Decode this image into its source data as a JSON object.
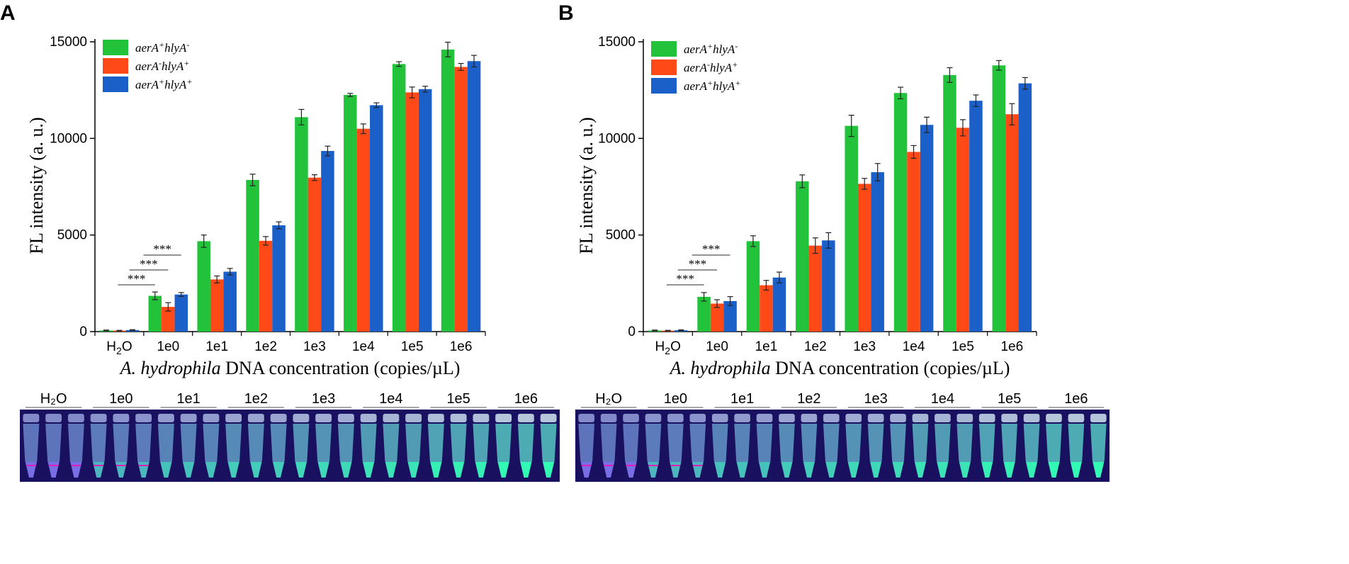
{
  "colors": {
    "green": "#22c33b",
    "orange": "#ff4a18",
    "blue": "#1b5fc8",
    "axis": "#000000",
    "tube_bg": "#1a1060"
  },
  "chart_data": [
    {
      "type": "bar",
      "panel": "A",
      "title": "",
      "xlabel_italic": "A. hydrophila",
      "xlabel_rest": " DNA concentration (copies/µL)",
      "ylabel": "FL intensity (a. u.)",
      "ylim": [
        0,
        15000
      ],
      "yticks": [
        0,
        5000,
        10000,
        15000
      ],
      "categories": [
        "H2O",
        "1e0",
        "1e1",
        "1e2",
        "1e3",
        "1e4",
        "1e5",
        "1e6"
      ],
      "series": [
        {
          "name": "aerA+hlyA-",
          "base": "aerA",
          "sup1": "+",
          "mid": "hlyA",
          "sup2": "-",
          "color": "#22c33b",
          "values": [
            60,
            1850,
            4680,
            7850,
            11100,
            12250,
            13850,
            14600
          ],
          "errors": [
            20,
            200,
            320,
            300,
            400,
            80,
            120,
            380
          ]
        },
        {
          "name": "aerA-hlyA+",
          "base": "aerA",
          "sup1": "-",
          "mid": "hlyA",
          "sup2": "+",
          "color": "#ff4a18",
          "values": [
            50,
            1280,
            2700,
            4700,
            7970,
            10500,
            12380,
            13700
          ],
          "errors": [
            15,
            220,
            180,
            220,
            150,
            250,
            280,
            180
          ]
        },
        {
          "name": "aerA+hlyA+",
          "base": "aerA",
          "sup1": "+",
          "mid": "hlyA",
          "sup2": "+",
          "color": "#1b5fc8",
          "values": [
            80,
            1920,
            3100,
            5500,
            9350,
            11720,
            12550,
            14000
          ],
          "errors": [
            20,
            100,
            170,
            180,
            250,
            120,
            150,
            300
          ]
        }
      ],
      "significance": [
        {
          "label": "***",
          "level": 1
        },
        {
          "label": "***",
          "level": 2
        },
        {
          "label": "***",
          "level": 3
        }
      ],
      "tube_labels": [
        "H₂O",
        "1e0",
        "1e1",
        "1e2",
        "1e3",
        "1e4",
        "1e5",
        "1e6"
      ]
    },
    {
      "type": "bar",
      "panel": "B",
      "title": "",
      "xlabel_italic": "A. hydrophila",
      "xlabel_rest": " DNA concentration (copies/µL)",
      "ylabel": "FL intensity (a. u.)",
      "ylim": [
        0,
        15000
      ],
      "yticks": [
        0,
        5000,
        10000,
        15000
      ],
      "categories": [
        "H2O",
        "1e0",
        "1e1",
        "1e2",
        "1e3",
        "1e4",
        "1e5",
        "1e6"
      ],
      "series": [
        {
          "name": "aerA+hlyA-",
          "base": "aerA",
          "sup1": "+",
          "mid": "hlyA",
          "sup2": "-",
          "color": "#22c33b",
          "values": [
            60,
            1800,
            4680,
            7780,
            10650,
            12350,
            13280,
            13780
          ],
          "errors": [
            20,
            220,
            280,
            330,
            550,
            300,
            380,
            250
          ]
        },
        {
          "name": "aerA-hlyA+",
          "base": "aerA",
          "sup1": "-",
          "mid": "hlyA",
          "sup2": "+",
          "color": "#ff4a18",
          "values": [
            50,
            1450,
            2400,
            4450,
            7650,
            9300,
            10550,
            11250
          ],
          "errors": [
            15,
            200,
            250,
            400,
            280,
            330,
            420,
            550
          ]
        },
        {
          "name": "aerA+hlyA+",
          "base": "aerA",
          "sup1": "+",
          "mid": "hlyA",
          "sup2": "+",
          "color": "#1b5fc8",
          "values": [
            70,
            1580,
            2800,
            4720,
            8250,
            10700,
            11950,
            12850
          ],
          "errors": [
            20,
            230,
            280,
            400,
            450,
            400,
            300,
            300
          ]
        }
      ],
      "significance": [
        {
          "label": "***",
          "level": 1
        },
        {
          "label": "***",
          "level": 2
        },
        {
          "label": "***",
          "level": 3
        }
      ],
      "tube_labels": [
        "H₂O",
        "1e0",
        "1e1",
        "1e2",
        "1e3",
        "1e4",
        "1e5",
        "1e6"
      ]
    }
  ]
}
